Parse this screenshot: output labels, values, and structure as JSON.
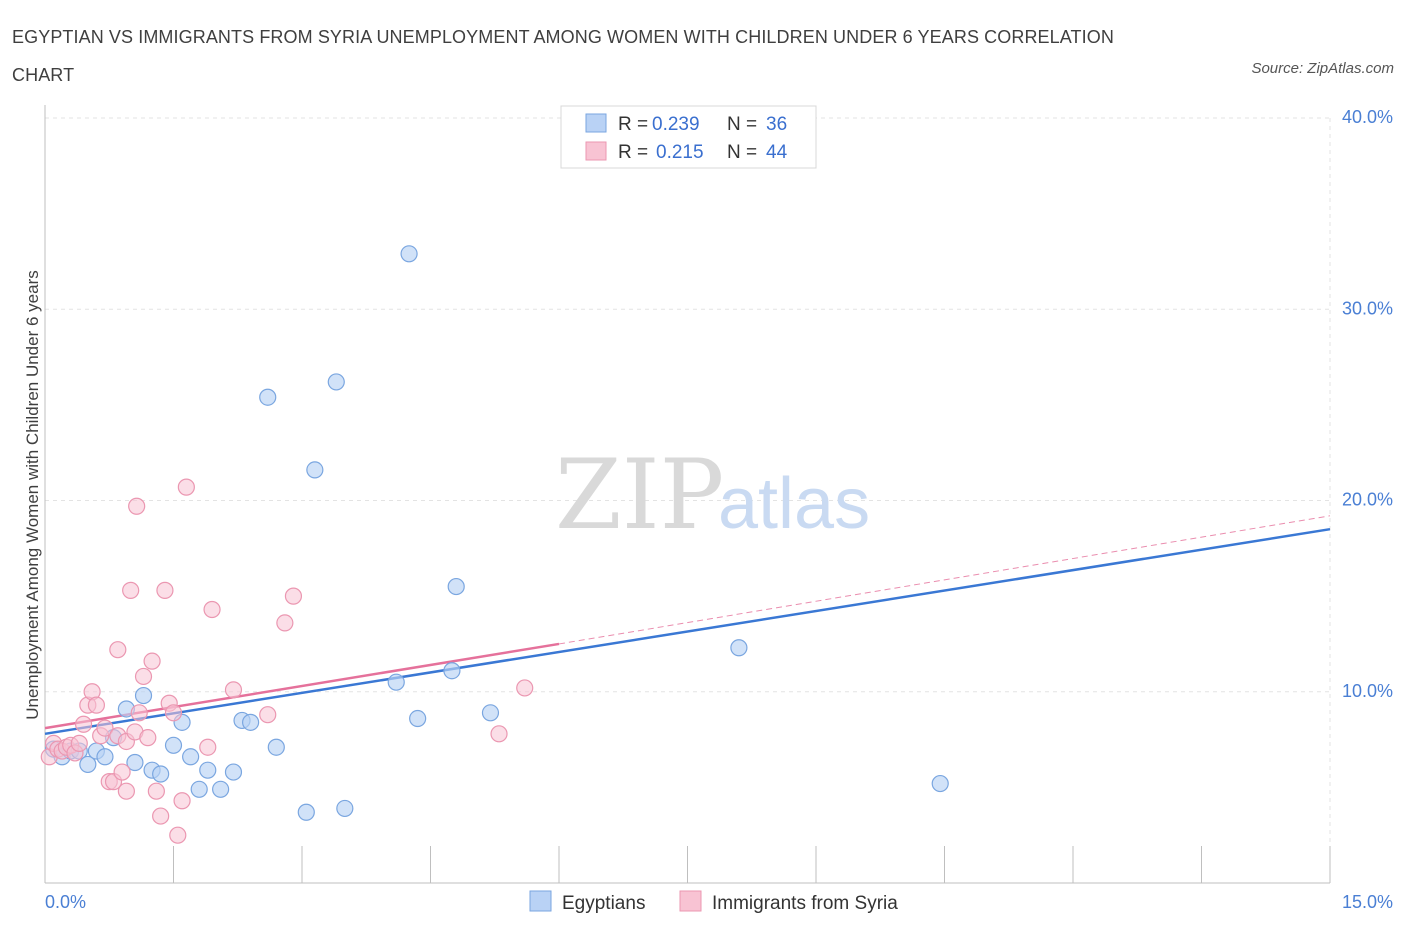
{
  "header": {
    "title": "EGYPTIAN VS IMMIGRANTS FROM SYRIA UNEMPLOYMENT AMONG WOMEN WITH CHILDREN UNDER 6 YEARS CORRELATION CHART",
    "source": "Source: ZipAtlas.com"
  },
  "watermark": {
    "zip": "ZIP",
    "atlas": "atlas"
  },
  "legend_top": {
    "r_label": "R =",
    "n_label": "N =",
    "rows": [
      {
        "r": "0.239",
        "n": "36"
      },
      {
        "r": "0.215",
        "n": "44"
      }
    ]
  },
  "colors": {
    "egyptians_fill": "#b9d2f5",
    "egyptians_stroke": "#7aa6e0",
    "egyptians_line": "#3a78d4",
    "syria_fill": "#f8c3d3",
    "syria_stroke": "#eb97b1",
    "syria_line": "#e5719b",
    "axis_text": "#4a7fd4",
    "grid": "#e3e3e3"
  },
  "chart_data": {
    "type": "scatter",
    "title": "EGYPTIAN VS IMMIGRANTS FROM SYRIA UNEMPLOYMENT AMONG WOMEN WITH CHILDREN UNDER 6 YEARS CORRELATION CHART",
    "xlabel": "",
    "ylabel": "Unemployment Among Women with Children Under 6 years",
    "xlim": [
      0,
      15
    ],
    "ylim": [
      0,
      40
    ],
    "x_tick_labels": [
      "0.0%",
      "15.0%"
    ],
    "y_ticks": [
      10,
      20,
      30,
      40
    ],
    "y_tick_labels": [
      "10.0%",
      "20.0%",
      "30.0%",
      "40.0%"
    ],
    "grid": true,
    "legend_position": "top-center",
    "series": [
      {
        "name": "Egyptians",
        "r": 0.239,
        "n": 36,
        "trend": {
          "x": [
            0,
            15
          ],
          "y": [
            7.8,
            18.5
          ]
        },
        "points": [
          [
            0.1,
            7.0
          ],
          [
            0.2,
            6.6
          ],
          [
            0.3,
            6.9
          ],
          [
            0.4,
            6.9
          ],
          [
            0.5,
            6.2
          ],
          [
            0.6,
            6.9
          ],
          [
            0.7,
            6.6
          ],
          [
            0.8,
            7.6
          ],
          [
            0.95,
            9.1
          ],
          [
            1.05,
            6.3
          ],
          [
            1.15,
            9.8
          ],
          [
            1.25,
            5.9
          ],
          [
            1.35,
            5.7
          ],
          [
            1.5,
            7.2
          ],
          [
            1.6,
            8.4
          ],
          [
            1.7,
            6.6
          ],
          [
            1.8,
            4.9
          ],
          [
            1.9,
            5.9
          ],
          [
            2.05,
            4.9
          ],
          [
            2.2,
            5.8
          ],
          [
            2.3,
            8.5
          ],
          [
            2.4,
            8.4
          ],
          [
            2.6,
            25.4
          ],
          [
            2.7,
            7.1
          ],
          [
            3.05,
            3.7
          ],
          [
            3.15,
            21.6
          ],
          [
            3.4,
            26.2
          ],
          [
            3.5,
            3.9
          ],
          [
            4.1,
            10.5
          ],
          [
            4.25,
            32.9
          ],
          [
            4.35,
            8.6
          ],
          [
            4.75,
            11.1
          ],
          [
            4.8,
            15.5
          ],
          [
            5.2,
            8.9
          ],
          [
            8.1,
            12.3
          ],
          [
            10.45,
            5.2
          ]
        ]
      },
      {
        "name": "Immigrants from Syria",
        "r": 0.215,
        "n": 44,
        "trend": {
          "x": [
            0,
            6
          ],
          "y": [
            8.1,
            12.5
          ]
        },
        "trend_extension": {
          "x": [
            6,
            15
          ],
          "y": [
            12.5,
            19.2
          ]
        },
        "points": [
          [
            0.05,
            6.6
          ],
          [
            0.1,
            7.3
          ],
          [
            0.15,
            7.0
          ],
          [
            0.2,
            6.9
          ],
          [
            0.25,
            7.1
          ],
          [
            0.3,
            7.2
          ],
          [
            0.35,
            6.8
          ],
          [
            0.4,
            7.3
          ],
          [
            0.45,
            8.3
          ],
          [
            0.5,
            9.3
          ],
          [
            0.55,
            10.0
          ],
          [
            0.6,
            9.3
          ],
          [
            0.65,
            7.7
          ],
          [
            0.7,
            8.1
          ],
          [
            0.75,
            5.3
          ],
          [
            0.8,
            5.3
          ],
          [
            0.85,
            7.7
          ],
          [
            0.9,
            5.8
          ],
          [
            0.95,
            7.4
          ],
          [
            0.85,
            12.2
          ],
          [
            0.95,
            4.8
          ],
          [
            1.0,
            15.3
          ],
          [
            1.05,
            7.9
          ],
          [
            1.1,
            8.9
          ],
          [
            1.15,
            10.8
          ],
          [
            1.2,
            7.6
          ],
          [
            1.25,
            11.6
          ],
          [
            1.3,
            4.8
          ],
          [
            1.35,
            3.5
          ],
          [
            1.4,
            15.3
          ],
          [
            1.45,
            9.4
          ],
          [
            1.5,
            8.9
          ],
          [
            1.55,
            2.5
          ],
          [
            1.6,
            4.3
          ],
          [
            1.65,
            20.7
          ],
          [
            1.07,
            19.7
          ],
          [
            1.9,
            7.1
          ],
          [
            1.95,
            14.3
          ],
          [
            2.2,
            10.1
          ],
          [
            2.6,
            8.8
          ],
          [
            2.8,
            13.6
          ],
          [
            2.9,
            15.0
          ],
          [
            5.3,
            7.8
          ],
          [
            5.6,
            10.2
          ]
        ]
      }
    ]
  },
  "legend_bottom": {
    "items": [
      {
        "label": "Egyptians"
      },
      {
        "label": "Immigrants from Syria"
      }
    ]
  }
}
